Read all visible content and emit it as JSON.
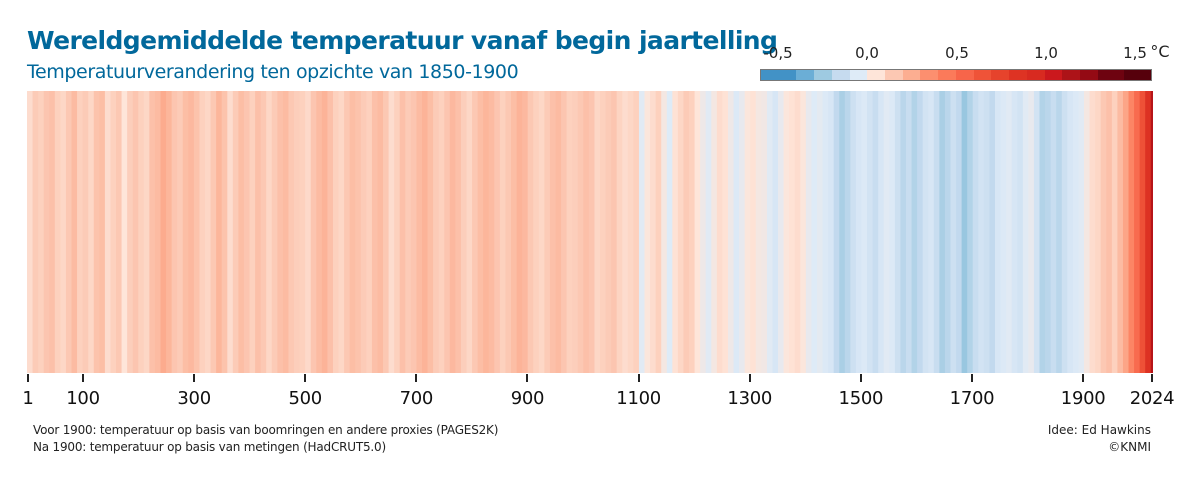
{
  "header": {
    "title": "Wereldgemiddelde temperatuur vanaf begin jaartelling",
    "subtitle": "Temperatuurverandering ten opzichte van 1850-1900"
  },
  "legend": {
    "labels": [
      "-0,5",
      "0,0",
      "0,5",
      "1,0",
      "1,5"
    ],
    "label_values": [
      -0.5,
      0.0,
      0.5,
      1.0,
      1.5
    ],
    "unit": "°C",
    "range": [
      -0.6,
      1.6
    ],
    "bins": [
      {
        "from": -0.6,
        "to": -0.4,
        "color": "#4292c6"
      },
      {
        "from": -0.4,
        "to": -0.3,
        "color": "#6baed6"
      },
      {
        "from": -0.3,
        "to": -0.2,
        "color": "#9ecae1"
      },
      {
        "from": -0.2,
        "to": -0.1,
        "color": "#c6dbef"
      },
      {
        "from": -0.1,
        "to": 0.0,
        "color": "#deebf7"
      },
      {
        "from": 0.0,
        "to": 0.1,
        "color": "#fee5d9"
      },
      {
        "from": 0.1,
        "to": 0.2,
        "color": "#fcc8b3"
      },
      {
        "from": 0.2,
        "to": 0.3,
        "color": "#fcae91"
      },
      {
        "from": 0.3,
        "to": 0.4,
        "color": "#fc8f6f"
      },
      {
        "from": 0.4,
        "to": 0.5,
        "color": "#fb7a5a"
      },
      {
        "from": 0.5,
        "to": 0.6,
        "color": "#f7654a"
      },
      {
        "from": 0.6,
        "to": 0.7,
        "color": "#ef5338"
      },
      {
        "from": 0.7,
        "to": 0.8,
        "color": "#e6432c"
      },
      {
        "from": 0.8,
        "to": 0.9,
        "color": "#de3323"
      },
      {
        "from": 0.9,
        "to": 1.0,
        "color": "#d82a20"
      },
      {
        "from": 1.0,
        "to": 1.1,
        "color": "#cb181d"
      },
      {
        "from": 1.1,
        "to": 1.2,
        "color": "#ad1318"
      },
      {
        "from": 1.2,
        "to": 1.3,
        "color": "#940a14"
      },
      {
        "from": 1.3,
        "to": 1.45,
        "color": "#6e0310"
      },
      {
        "from": 1.45,
        "to": 1.6,
        "color": "#56000c"
      }
    ]
  },
  "chart_data": {
    "type": "heatmap",
    "title": "Wereldgemiddelde temperatuur vanaf begin jaartelling",
    "subtitle": "Temperatuurverandering ten opzichte van 1850-1900",
    "xlabel": "",
    "ylabel": "",
    "unit": "°C",
    "x_range": [
      1,
      2024
    ],
    "x_ticks": [
      1,
      100,
      300,
      500,
      700,
      900,
      1100,
      1300,
      1500,
      1700,
      1900,
      2024
    ],
    "bin_years": 10,
    "decadal_anomaly_estimates": [
      0.08,
      0.14,
      0.12,
      0.16,
      0.18,
      0.12,
      0.1,
      0.15,
      0.2,
      0.12,
      0.14,
      0.1,
      0.17,
      0.19,
      0.08,
      0.12,
      0.15,
      0.05,
      0.13,
      0.16,
      0.12,
      0.1,
      0.18,
      0.2,
      0.26,
      0.22,
      0.16,
      0.14,
      0.19,
      0.21,
      0.17,
      0.12,
      0.1,
      0.15,
      0.22,
      0.17,
      0.08,
      0.14,
      0.19,
      0.16,
      0.12,
      0.18,
      0.15,
      0.1,
      0.14,
      0.18,
      0.2,
      0.15,
      0.13,
      0.12,
      0.09,
      0.16,
      0.2,
      0.23,
      0.18,
      0.12,
      0.1,
      0.15,
      0.19,
      0.17,
      0.14,
      0.12,
      0.18,
      0.2,
      0.15,
      0.08,
      0.12,
      0.18,
      0.14,
      0.16,
      0.2,
      0.23,
      0.19,
      0.14,
      0.12,
      0.16,
      0.21,
      0.18,
      0.13,
      0.1,
      0.15,
      0.19,
      0.22,
      0.2,
      0.16,
      0.12,
      0.15,
      0.19,
      0.23,
      0.21,
      0.15,
      0.12,
      0.1,
      0.14,
      0.18,
      0.2,
      0.16,
      0.12,
      0.13,
      0.15,
      0.18,
      0.16,
      0.1,
      0.12,
      0.14,
      0.16,
      0.11,
      0.08,
      0.1,
      0.12,
      -0.04,
      0.04,
      0.08,
      0.12,
      0.02,
      -0.05,
      0.06,
      0.1,
      0.14,
      0.12,
      0.05,
      0.0,
      -0.04,
      0.02,
      0.08,
      0.06,
      0.0,
      -0.06,
      -0.02,
      0.04,
      0.06,
      0.02,
      0.01,
      -0.04,
      -0.08,
      -0.02,
      0.04,
      0.06,
      0.08,
      0.04,
      -0.02,
      -0.05,
      -0.03,
      -0.06,
      -0.08,
      -0.16,
      -0.22,
      -0.18,
      -0.12,
      -0.08,
      -0.06,
      -0.1,
      -0.14,
      -0.08,
      -0.04,
      -0.06,
      -0.12,
      -0.18,
      -0.14,
      -0.2,
      -0.16,
      -0.1,
      -0.08,
      -0.14,
      -0.22,
      -0.18,
      -0.12,
      -0.16,
      -0.26,
      -0.2,
      -0.14,
      -0.1,
      -0.12,
      -0.16,
      -0.08,
      -0.06,
      -0.04,
      -0.08,
      -0.1,
      -0.04,
      -0.02,
      -0.1,
      -0.2,
      -0.18,
      -0.14,
      -0.18,
      -0.12,
      -0.08,
      -0.06,
      -0.04,
      0.02,
      0.08,
      0.1,
      0.15,
      0.18,
      0.12,
      0.2,
      0.28,
      0.4,
      0.52,
      0.66,
      0.86,
      1.12
    ]
  },
  "axis": {
    "tick_labels": [
      "1",
      "100",
      "300",
      "500",
      "700",
      "900",
      "1100",
      "1300",
      "1500",
      "1700",
      "1900",
      "2024"
    ],
    "tick_years": [
      1,
      100,
      300,
      500,
      700,
      900,
      1100,
      1300,
      1500,
      1700,
      1900,
      2024
    ]
  },
  "footer": {
    "note1": "Voor 1900: temperatuur op basis van boomringen en andere proxies (PAGES2K)",
    "note2": "Na 1900: temperatuur op basis van metingen (HadCRUT5.0)",
    "credit1": "Idee: Ed Hawkins",
    "credit2": "©KNMI"
  }
}
